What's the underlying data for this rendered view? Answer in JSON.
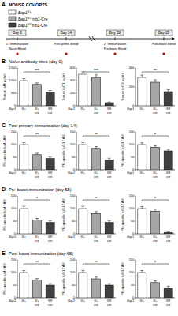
{
  "figure": {
    "cohorts": {
      "letter": "A",
      "title": "MOUSE COHORTS",
      "groups": [
        {
          "gene": "Bap1",
          "allele": "fl/+",
          "color": "#ffffff"
        },
        {
          "gene": "Bap1",
          "allele": "fl/+",
          "cre": "mb1-Cre",
          "color": "#a6a6a6"
        },
        {
          "gene": "Bap1",
          "allele": "fl/fl",
          "cre": "mb1-Cre",
          "color": "#404040"
        }
      ],
      "timeline": [
        {
          "day": "Day 0",
          "events": [
            "1° Immunization",
            "Naive Bleed"
          ]
        },
        {
          "day": "Day 14",
          "events": [
            "Post-prime Bleed"
          ]
        },
        {
          "day": "Day 58",
          "events": [
            "2° Immunization",
            "Pre-boost Bleed"
          ]
        },
        {
          "day": "Day 65",
          "events": [
            "Post-boost Bleed"
          ]
        }
      ]
    },
    "panels": [
      {
        "letter": "B",
        "title": "Naive antibody titres (day 0)"
      },
      {
        "letter": "C",
        "title": "Post-primary immunization (day 14)"
      },
      {
        "letter": "D",
        "title": "Pre-boost immunization (day 58)"
      },
      {
        "letter": "E",
        "title": "Post-boost immunization (day 65)"
      }
    ]
  },
  "chart_data": [
    {
      "type": "bar",
      "y_label": "Serum IgM µg/ml",
      "x_label": "Bap1",
      "categories": [
        "fl/+",
        "fl/+ cre",
        "fl/fl cre"
      ],
      "values": [
        1000,
        850,
        550
      ],
      "errors": [
        80,
        60,
        60
      ],
      "colors": [
        "#ffffff",
        "#a6a6a6",
        "#404040"
      ],
      "ylim": [
        0,
        1500
      ],
      "yticks": [
        0,
        500,
        1000,
        1500
      ],
      "annotations": [
        "***"
      ]
    },
    {
      "type": "bar",
      "y_label": "Serum IgG1 µg/ml",
      "x_label": "Bap1",
      "categories": [
        "fl/+",
        "fl/+ cre",
        "fl/fl cre"
      ],
      "values": [
        500,
        450,
        50
      ],
      "errors": [
        40,
        40,
        10
      ],
      "colors": [
        "#ffffff",
        "#a6a6a6",
        "#404040"
      ],
      "ylim": [
        0,
        600
      ],
      "yticks": [
        0,
        200,
        400,
        600
      ],
      "annotations": [
        "***"
      ]
    },
    {
      "type": "bar",
      "y_label": "Serum IgG3 µg/ml",
      "x_label": "Bap1",
      "categories": [
        "fl/+",
        "fl/+ cre",
        "fl/fl cre"
      ],
      "values": [
        300,
        250,
        150
      ],
      "errors": [
        25,
        25,
        20
      ],
      "colors": [
        "#ffffff",
        "#a6a6a6",
        "#404040"
      ],
      "ylim": [
        0,
        400
      ],
      "yticks": [
        0,
        200,
        400
      ],
      "annotations": [
        "**"
      ]
    },
    {
      "type": "bar",
      "y_label": "PE-specific IgM / AU",
      "x_label": "Bap1",
      "categories": [
        "fl/+",
        "fl/+ cre",
        "fl/fl cre"
      ],
      "values": [
        100,
        60,
        45
      ],
      "errors": [
        8,
        6,
        6
      ],
      "colors": [
        "#ffffff",
        "#a6a6a6",
        "#404040"
      ],
      "ylim": [
        0,
        150
      ],
      "yticks": [
        0,
        50,
        100,
        150
      ],
      "annotations": [
        "**"
      ]
    },
    {
      "type": "bar",
      "y_label": "PE-specific IgG1 / AU",
      "x_label": "Bap1",
      "categories": [
        "fl/+",
        "fl/+ cre",
        "fl/fl cre"
      ],
      "values": [
        100,
        85,
        40
      ],
      "errors": [
        8,
        7,
        6
      ],
      "colors": [
        "#ffffff",
        "#a6a6a6",
        "#404040"
      ],
      "ylim": [
        0,
        150
      ],
      "yticks": [
        0,
        50,
        100,
        150
      ],
      "annotations": [
        "**"
      ]
    },
    {
      "type": "bar",
      "y_label": "PE-specific IgG3 / AU",
      "x_label": "Bap1",
      "categories": [
        "fl/+",
        "fl/+ cre",
        "fl/fl cre"
      ],
      "values": [
        100,
        90,
        75
      ],
      "errors": [
        7,
        6,
        6
      ],
      "colors": [
        "#ffffff",
        "#a6a6a6",
        "#404040"
      ],
      "ylim": [
        0,
        150
      ],
      "yticks": [
        0,
        50,
        100,
        150
      ],
      "annotations": [
        "*"
      ]
    },
    {
      "type": "bar",
      "y_label": "PE-specific IgM / AU",
      "x_label": "Bap1",
      "categories": [
        "fl/+",
        "fl/+ cre",
        "fl/fl cre"
      ],
      "values": [
        100,
        55,
        45
      ],
      "errors": [
        9,
        6,
        6
      ],
      "colors": [
        "#ffffff",
        "#a6a6a6",
        "#404040"
      ],
      "ylim": [
        0,
        150
      ],
      "yticks": [
        0,
        50,
        100,
        150
      ],
      "annotations": [
        "*"
      ]
    },
    {
      "type": "bar",
      "y_label": "PE-specific IgG1 / AU",
      "x_label": "Bap1",
      "categories": [
        "fl/+",
        "fl/+ cre",
        "fl/fl cre"
      ],
      "values": [
        100,
        80,
        45
      ],
      "errors": [
        9,
        8,
        6
      ],
      "colors": [
        "#ffffff",
        "#a6a6a6",
        "#404040"
      ],
      "ylim": [
        0,
        150
      ],
      "yticks": [
        0,
        50,
        100,
        150
      ],
      "annotations": [
        "*"
      ]
    },
    {
      "type": "bar",
      "y_label": "PE-specific IgG3 / AU",
      "x_label": "Bap1",
      "categories": [
        "fl/+",
        "fl/+ cre",
        "fl/fl cre"
      ],
      "values": [
        100,
        90,
        5
      ],
      "errors": [
        8,
        8,
        2
      ],
      "colors": [
        "#ffffff",
        "#a6a6a6",
        "#404040"
      ],
      "ylim": [
        0,
        150
      ],
      "yticks": [
        0,
        50,
        100,
        150
      ],
      "annotations": [
        "*"
      ]
    },
    {
      "type": "bar",
      "y_label": "PE-specific IgM / AU",
      "x_label": "Bap1",
      "categories": [
        "fl/+",
        "fl/+ cre",
        "fl/fl cre"
      ],
      "values": [
        100,
        70,
        50
      ],
      "errors": [
        8,
        6,
        6
      ],
      "colors": [
        "#ffffff",
        "#a6a6a6",
        "#404040"
      ],
      "ylim": [
        0,
        150
      ],
      "yticks": [
        0,
        50,
        100,
        150
      ],
      "annotations": [
        "**"
      ]
    },
    {
      "type": "bar",
      "y_label": "PE-specific IgG1 / AU",
      "x_label": "Bap1",
      "categories": [
        "fl/+",
        "fl/+ cre",
        "fl/fl cre"
      ],
      "values": [
        100,
        75,
        50
      ],
      "errors": [
        8,
        7,
        6
      ],
      "colors": [
        "#ffffff",
        "#a6a6a6",
        "#404040"
      ],
      "ylim": [
        0,
        150
      ],
      "yticks": [
        0,
        50,
        100,
        150
      ],
      "annotations": [
        "**"
      ]
    },
    {
      "type": "bar",
      "y_label": "PE-specific IgG3 / AU",
      "x_label": "Bap1",
      "categories": [
        "fl/+",
        "fl/+ cre",
        "fl/fl cre"
      ],
      "values": [
        100,
        60,
        40
      ],
      "errors": [
        8,
        7,
        6
      ],
      "colors": [
        "#ffffff",
        "#a6a6a6",
        "#404040"
      ],
      "ylim": [
        0,
        150
      ],
      "yticks": [
        0,
        50,
        100,
        150
      ],
      "annotations": [
        "*"
      ]
    }
  ]
}
